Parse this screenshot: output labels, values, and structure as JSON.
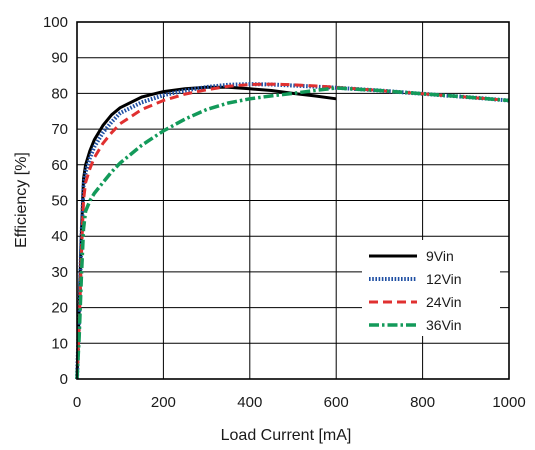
{
  "chart_data": {
    "type": "line",
    "title": "",
    "xlabel": "Load Current [mA]",
    "ylabel": "Efficiency [%]",
    "xlim": [
      0,
      1000
    ],
    "ylim": [
      0,
      100
    ],
    "xticks": [
      0,
      200,
      400,
      600,
      800,
      1000
    ],
    "yticks": [
      0,
      10,
      20,
      30,
      40,
      50,
      60,
      70,
      80,
      90,
      100
    ],
    "grid": true,
    "legend_position": "right",
    "series": [
      {
        "name": "9Vin",
        "color": "#000000",
        "dash": "solid",
        "x": [
          0,
          5,
          10,
          15,
          20,
          30,
          40,
          60,
          80,
          100,
          150,
          200,
          250,
          300,
          350,
          400,
          450,
          500,
          550,
          600
        ],
        "y": [
          0,
          20,
          40,
          56,
          60,
          64,
          67,
          71,
          74,
          76,
          79,
          80.5,
          81.3,
          81.7,
          81.7,
          81.3,
          80.8,
          80,
          79.3,
          78.5
        ]
      },
      {
        "name": "12Vin",
        "color": "#1f4fa3",
        "dash": "dotted",
        "x": [
          0,
          5,
          10,
          15,
          20,
          30,
          40,
          60,
          80,
          100,
          150,
          200,
          250,
          300,
          350,
          400,
          450,
          500,
          550,
          600,
          700,
          800,
          900,
          1000
        ],
        "y": [
          0,
          18,
          38,
          54,
          58,
          62,
          65,
          69,
          72,
          74.5,
          77.5,
          79.5,
          80.8,
          81.8,
          82.4,
          82.6,
          82.5,
          82.2,
          81.9,
          81.6,
          80.8,
          79.9,
          79,
          78
        ]
      },
      {
        "name": "24Vin",
        "color": "#e03030",
        "dash": "dashed",
        "x": [
          0,
          5,
          10,
          15,
          20,
          30,
          40,
          60,
          80,
          100,
          150,
          200,
          250,
          300,
          350,
          400,
          450,
          500,
          550,
          600,
          700,
          800,
          900,
          1000
        ],
        "y": [
          0,
          15,
          34,
          50,
          55,
          59,
          62,
          66,
          69,
          71.5,
          75.5,
          78,
          79.8,
          81,
          82,
          82.5,
          82.6,
          82.4,
          82.1,
          81.7,
          80.8,
          79.9,
          79,
          78
        ]
      },
      {
        "name": "36Vin",
        "color": "#139a5a",
        "dash": "dashdot",
        "x": [
          0,
          5,
          10,
          15,
          20,
          30,
          40,
          60,
          80,
          100,
          150,
          200,
          250,
          300,
          350,
          400,
          450,
          500,
          550,
          600,
          700,
          800,
          900,
          1000
        ],
        "y": [
          0,
          12,
          28,
          42,
          47,
          50,
          52,
          55,
          58,
          60.5,
          65.5,
          69.5,
          72.8,
          75.5,
          77.3,
          78.5,
          79.3,
          80,
          80.8,
          81.5,
          80.8,
          79.9,
          79,
          78
        ]
      }
    ]
  }
}
